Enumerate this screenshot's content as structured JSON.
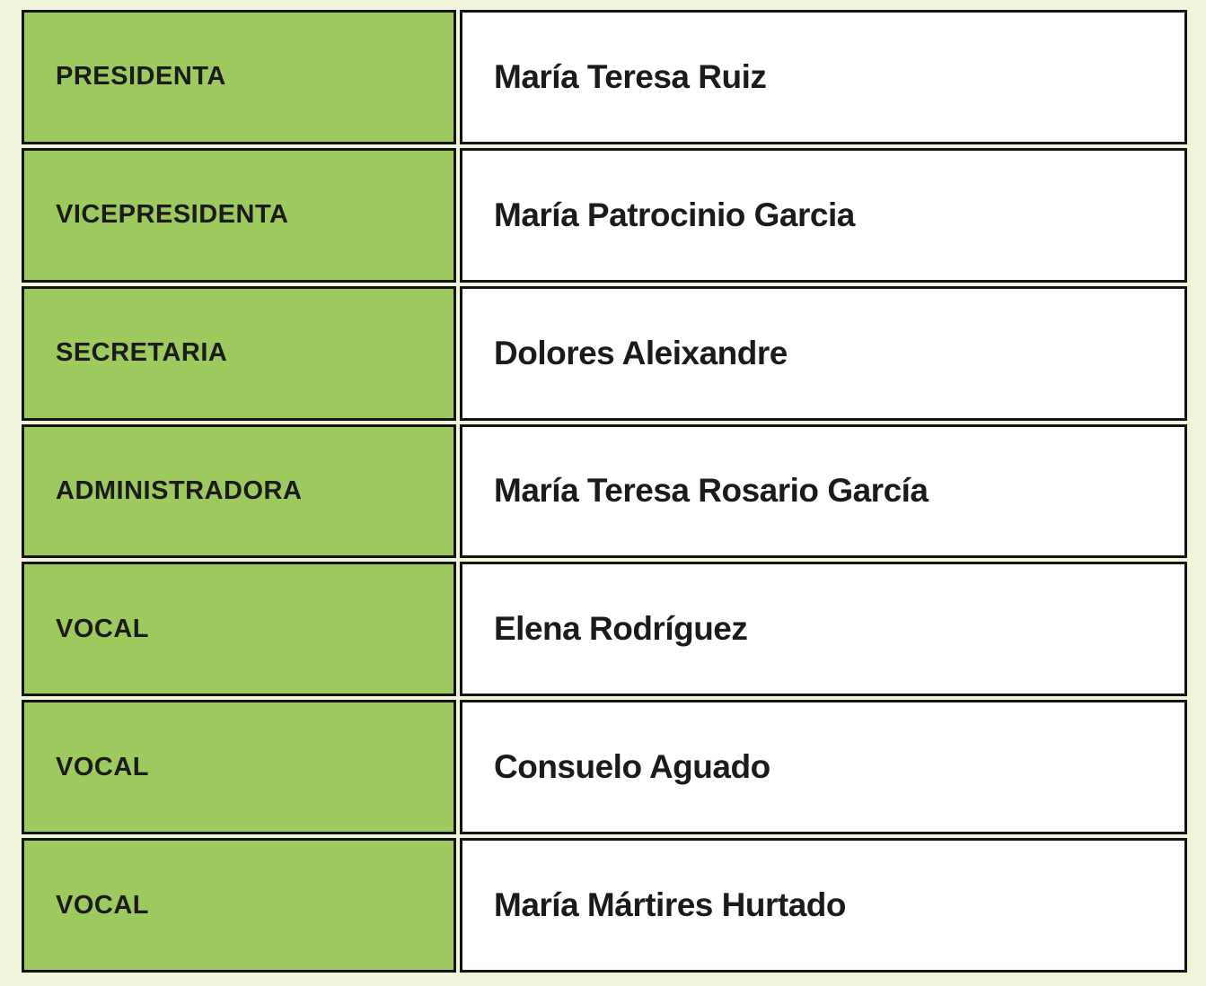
{
  "table": {
    "title": "committee-board",
    "colors": {
      "page_background": "#F0F4DB",
      "role_cell_background": "#9CCA5F",
      "name_cell_background": "#FFFFFF",
      "cell_border": "#141414",
      "text": "#1B1B1B"
    },
    "rows": [
      {
        "role": "PRESIDENTA",
        "name": "María Teresa Ruiz"
      },
      {
        "role": "VICEPRESIDENTA",
        "name": "María Patrocinio Garcia"
      },
      {
        "role": "SECRETARIA",
        "name": "Dolores Aleixandre"
      },
      {
        "role": "ADMINISTRADORA",
        "name": "María Teresa Rosario García"
      },
      {
        "role": "VOCAL",
        "name": "Elena Rodríguez"
      },
      {
        "role": "VOCAL",
        "name": "Consuelo Aguado"
      },
      {
        "role": "VOCAL",
        "name": "María Mártires Hurtado"
      }
    ]
  }
}
